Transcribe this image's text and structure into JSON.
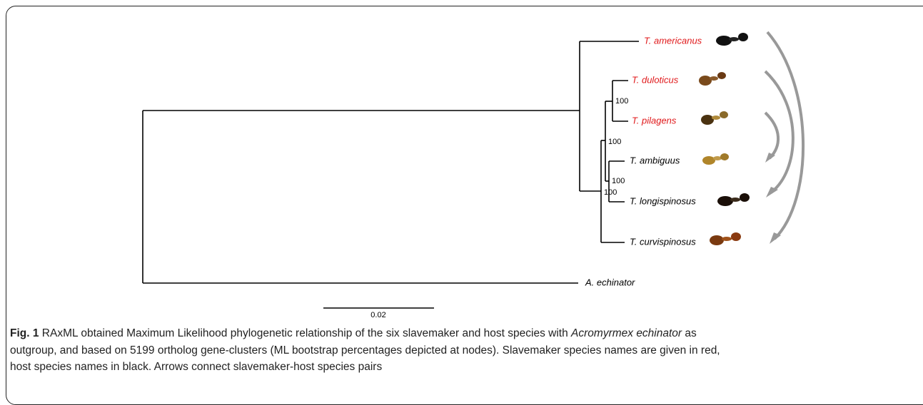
{
  "figure": {
    "taxa": [
      "T. americanus",
      "T. duloticus",
      "T. pilagens",
      "T. ambiguus",
      "T. longispinosus",
      "T. curvispinosus",
      "A. echinator"
    ],
    "bootstrap": [
      "100",
      "100",
      "100",
      "100"
    ],
    "scale_bar": "0.02",
    "caption": {
      "label": "Fig. 1",
      "line1_a": "RAxML obtained Maximum Likelihood phylogenetic relationship of the six slavemaker and host species with",
      "species": "Acromyrmex echinator",
      "line1_b": "as",
      "line2": "outgroup, and based on 5199 ortholog gene-clusters (ML bootstrap percentages depicted at nodes). Slavemaker species names are given in red,",
      "line3": "host species names in black. Arrows connect slavemaker-host species pairs"
    }
  }
}
